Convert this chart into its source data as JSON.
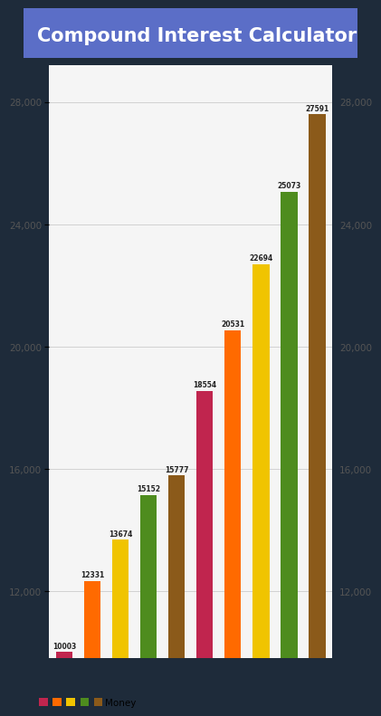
{
  "title": "Compound Interest Calculator",
  "title_bg": "#5b6ec7",
  "title_color": "white",
  "outer_bg": "#1e2b3a",
  "plot_bg": "#f5f5f5",
  "bars": [
    {
      "value": 10003,
      "color": "#c0254e"
    },
    {
      "value": 12331,
      "color": "#ff6a00"
    },
    {
      "value": 13674,
      "color": "#f0c400"
    },
    {
      "value": 15152,
      "color": "#4e8c1e"
    },
    {
      "value": 15777,
      "color": "#8b5a1a"
    },
    {
      "value": 18554,
      "color": "#c0254e"
    },
    {
      "value": 20531,
      "color": "#ff6a00"
    },
    {
      "value": 22694,
      "color": "#f0c400"
    },
    {
      "value": 25073,
      "color": "#4e8c1e"
    },
    {
      "value": 27591,
      "color": "#8b5a1a"
    }
  ],
  "legend_colors": [
    "#c0254e",
    "#ff6a00",
    "#f0c400",
    "#4e8c1e",
    "#8b5a1a"
  ],
  "legend_label": "Money",
  "yticks": [
    12000,
    16000,
    20000,
    24000,
    28000
  ],
  "ylim": [
    9800,
    29200
  ],
  "bar_bottom": 9800,
  "grid_color": "#cccccc",
  "tick_color": "#555555",
  "label_color": "#222222",
  "title_fontsize": 15,
  "tick_fontsize": 7.5,
  "bar_label_fontsize": 5.5,
  "bar_width": 0.6
}
